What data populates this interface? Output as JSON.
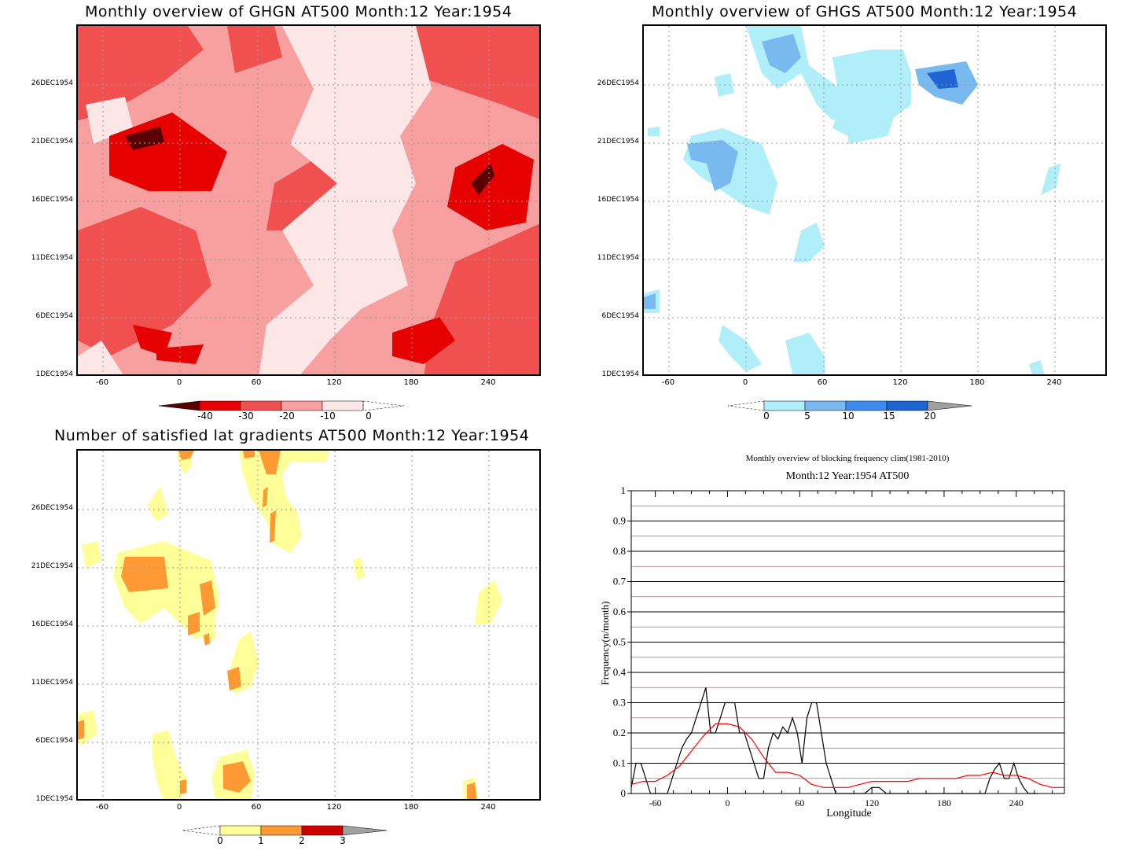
{
  "panels": [
    {
      "title": "Monthly overview of GHGN AT500 Month:12 Year:1954",
      "y_ticks": [
        "26DEC1954",
        "21DEC1954",
        "16DEC1954",
        "11DEC1954",
        "6DEC1954",
        "1DEC1954"
      ],
      "x_ticks": [
        "-60",
        "0",
        "60",
        "120",
        "180",
        "240"
      ],
      "colorbar": {
        "labels": [
          "-40",
          "-30",
          "-20",
          "-10",
          "0"
        ],
        "colors": [
          "#5a0000",
          "#e60000",
          "#f05050",
          "#f8a0a0",
          "#fce6e6"
        ]
      }
    },
    {
      "title": "Monthly overview of GHGS AT500 Month:12 Year:1954",
      "y_ticks": [
        "26DEC1954",
        "21DEC1954",
        "16DEC1954",
        "11DEC1954",
        "6DEC1954",
        "1DEC1954"
      ],
      "x_ticks": [
        "-60",
        "0",
        "60",
        "120",
        "180",
        "240"
      ],
      "colorbar": {
        "labels": [
          "0",
          "5",
          "10",
          "15",
          "20"
        ],
        "colors": [
          "#b0eefa",
          "#78b9f0",
          "#3c8cf0",
          "#1e64d2",
          "#a0a0a0"
        ]
      }
    },
    {
      "title": "Number of satisfied lat gradients AT500 Month:12 Year:1954",
      "y_ticks": [
        "26DEC1954",
        "21DEC1954",
        "16DEC1954",
        "11DEC1954",
        "6DEC1954",
        "1DEC1954"
      ],
      "x_ticks": [
        "-60",
        "0",
        "60",
        "120",
        "180",
        "240"
      ],
      "colorbar": {
        "labels": [
          "0",
          "1",
          "2",
          "3"
        ],
        "colors": [
          "#ffff99",
          "#ff9933",
          "#cc0000",
          "#a0a0a0"
        ]
      }
    }
  ],
  "line_panel": {
    "title": "Monthly overview of blocking frequency clim(1981-2010)",
    "subtitle": "Month:12 Year:1954  AT500",
    "ylabel": "Frequency(n/month)",
    "xlabel": "Longitude",
    "y_ticks": [
      "0",
      "0.1",
      "0.2",
      "0.3",
      "0.4",
      "0.5",
      "0.6",
      "0.7",
      "0.8",
      "0.9",
      "1"
    ],
    "x_ticks": [
      "-60",
      "0",
      "60",
      "120",
      "180",
      "240"
    ]
  },
  "chart_data": [
    {
      "type": "heatmap",
      "title": "Monthly overview of GHGN AT500 Month:12 Year:1954",
      "xlim": [
        -75,
        285
      ],
      "y_dates": [
        "1DEC1954",
        "6DEC1954",
        "11DEC1954",
        "16DEC1954",
        "21DEC1954",
        "26DEC1954"
      ],
      "levels": [
        -40,
        -30,
        -20,
        -10,
        0
      ]
    },
    {
      "type": "heatmap",
      "title": "Monthly overview of GHGS AT500 Month:12 Year:1954",
      "xlim": [
        -75,
        285
      ],
      "y_dates": [
        "1DEC1954",
        "6DEC1954",
        "11DEC1954",
        "16DEC1954",
        "21DEC1954",
        "26DEC1954"
      ],
      "levels": [
        0,
        5,
        10,
        15,
        20
      ]
    },
    {
      "type": "heatmap",
      "title": "Number of satisfied lat gradients AT500 Month:12 Year:1954",
      "xlim": [
        -75,
        285
      ],
      "y_dates": [
        "1DEC1954",
        "6DEC1954",
        "11DEC1954",
        "16DEC1954",
        "21DEC1954",
        "26DEC1954"
      ],
      "levels": [
        0,
        1,
        2,
        3
      ]
    },
    {
      "type": "line",
      "title": "Monthly overview of blocking frequency clim(1981-2010)",
      "subtitle": "Month:12 Year:1954  AT500",
      "xlabel": "Longitude",
      "ylabel": "Frequency(n/month)",
      "xlim": [
        -80,
        280
      ],
      "ylim": [
        0,
        1
      ],
      "series": [
        {
          "color": "#000000",
          "x": [
            -80,
            -76,
            -72,
            -68,
            -64,
            -60,
            -56,
            -50,
            -46,
            -42,
            -38,
            -34,
            -30,
            -26,
            -22,
            -18,
            -14,
            -10,
            -6,
            -2,
            2,
            6,
            10,
            14,
            18,
            22,
            26,
            30,
            34,
            38,
            42,
            46,
            50,
            54,
            58,
            62,
            66,
            70,
            74,
            78,
            82,
            86,
            90,
            96,
            102,
            108,
            114,
            120,
            126,
            132,
            138,
            144,
            150,
            156,
            162,
            168,
            174,
            180,
            186,
            192,
            198,
            204,
            210,
            214,
            218,
            222,
            226,
            230,
            234,
            238,
            242,
            246,
            250,
            254,
            258
          ],
          "y": [
            0.02,
            0.1,
            0.1,
            0.05,
            0.0,
            0.0,
            0.0,
            0.0,
            0.05,
            0.1,
            0.15,
            0.18,
            0.2,
            0.25,
            0.3,
            0.35,
            0.2,
            0.2,
            0.25,
            0.3,
            0.3,
            0.3,
            0.2,
            0.2,
            0.15,
            0.1,
            0.05,
            0.05,
            0.15,
            0.2,
            0.18,
            0.22,
            0.2,
            0.25,
            0.2,
            0.1,
            0.25,
            0.3,
            0.3,
            0.2,
            0.1,
            0.05,
            0.0,
            0.0,
            0.0,
            0.0,
            0.0,
            0.02,
            0.02,
            0.0,
            0.0,
            0.0,
            0.0,
            0.0,
            0.0,
            0.0,
            0.0,
            0.0,
            0.0,
            0.0,
            0.0,
            0.0,
            0.0,
            0.0,
            0.05,
            0.08,
            0.1,
            0.05,
            0.05,
            0.1,
            0.05,
            0.02,
            0.0,
            0.0,
            0.0
          ]
        },
        {
          "color": "#ff0000",
          "x": [
            -80,
            -70,
            -60,
            -50,
            -40,
            -30,
            -20,
            -10,
            0,
            10,
            20,
            30,
            40,
            50,
            60,
            70,
            80,
            90,
            100,
            110,
            120,
            130,
            140,
            150,
            160,
            170,
            180,
            190,
            200,
            210,
            220,
            230,
            240,
            250,
            260,
            270,
            280
          ],
          "y": [
            0.03,
            0.04,
            0.04,
            0.06,
            0.09,
            0.14,
            0.19,
            0.23,
            0.23,
            0.22,
            0.18,
            0.12,
            0.07,
            0.07,
            0.06,
            0.03,
            0.02,
            0.02,
            0.02,
            0.03,
            0.04,
            0.04,
            0.04,
            0.04,
            0.05,
            0.05,
            0.05,
            0.05,
            0.06,
            0.06,
            0.07,
            0.06,
            0.06,
            0.05,
            0.03,
            0.02,
            0.02
          ]
        }
      ]
    }
  ]
}
